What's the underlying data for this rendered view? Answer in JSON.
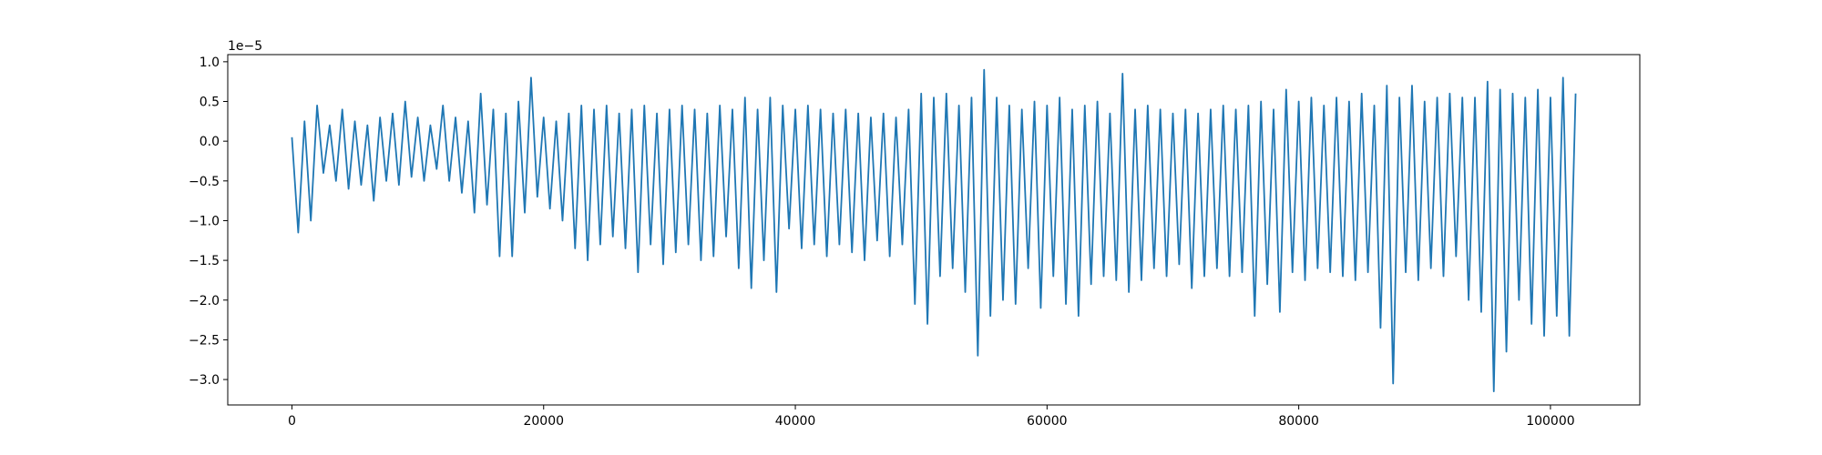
{
  "chart_data": {
    "type": "line",
    "y_offset_label": "1e−5",
    "xlim": [
      -5100,
      107100
    ],
    "ylim": [
      -3.32,
      1.09
    ],
    "xticks": [
      0,
      20000,
      40000,
      60000,
      80000,
      100000
    ],
    "yticks": [
      {
        "value": 1,
        "label": "1.0"
      },
      0.5,
      {
        "value": 0,
        "label": "0.0"
      },
      {
        "value": -0.5,
        "label": "−0.5"
      },
      {
        "value": -1,
        "label": "−1.0"
      },
      {
        "value": -1.5,
        "label": "−1.5"
      },
      {
        "value": -2,
        "label": "−2.0"
      },
      {
        "value": -2.5,
        "label": "−2.5"
      },
      {
        "value": -3,
        "label": "−3.0"
      }
    ],
    "grid": false,
    "x": [
      0,
      500,
      1000,
      1500,
      2000,
      2500,
      3000,
      3500,
      4000,
      4500,
      5000,
      5500,
      6000,
      6500,
      7000,
      7500,
      8000,
      8500,
      9000,
      9500,
      10000,
      10500,
      11000,
      11500,
      12000,
      12500,
      13000,
      13500,
      14000,
      14500,
      15000,
      15500,
      16000,
      16500,
      17000,
      17500,
      18000,
      18500,
      19000,
      19500,
      20000,
      20500,
      21000,
      21500,
      22000,
      22500,
      23000,
      23500,
      24000,
      24500,
      25000,
      25500,
      26000,
      26500,
      27000,
      27500,
      28000,
      28500,
      29000,
      29500,
      30000,
      30500,
      31000,
      31500,
      32000,
      32500,
      33000,
      33500,
      34000,
      34500,
      35000,
      35500,
      36000,
      36500,
      37000,
      37500,
      38000,
      38500,
      39000,
      39500,
      40000,
      40500,
      41000,
      41500,
      42000,
      42500,
      43000,
      43500,
      44000,
      44500,
      45000,
      45500,
      46000,
      46500,
      47000,
      47500,
      48000,
      48500,
      49000,
      49500,
      50000,
      50500,
      51000,
      51500,
      52000,
      52500,
      53000,
      53500,
      54000,
      54500,
      55000,
      55500,
      56000,
      56500,
      57000,
      57500,
      58000,
      58500,
      59000,
      59500,
      60000,
      60500,
      61000,
      61500,
      62000,
      62500,
      63000,
      63500,
      64000,
      64500,
      65000,
      65500,
      66000,
      66500,
      67000,
      67500,
      68000,
      68500,
      69000,
      69500,
      70000,
      70500,
      71000,
      71500,
      72000,
      72500,
      73000,
      73500,
      74000,
      74500,
      75000,
      75500,
      76000,
      76500,
      77000,
      77500,
      78000,
      78500,
      79000,
      79500,
      80000,
      80500,
      81000,
      81500,
      82000,
      82500,
      83000,
      83500,
      84000,
      84500,
      85000,
      85500,
      86000,
      86500,
      87000,
      87500,
      88000,
      88500,
      89000,
      89500,
      90000,
      90500,
      91000,
      91500,
      92000,
      92500,
      93000,
      93500,
      94000,
      94500,
      95000,
      95500,
      96000,
      96500,
      97000,
      97500,
      98000,
      98500,
      99000,
      99500,
      100000,
      100500,
      101000,
      101500,
      102000
    ],
    "series": [
      {
        "color": "#1f77b4",
        "values": [
          0.05,
          -1.15,
          0.25,
          -1.0,
          0.45,
          -0.4,
          0.2,
          -0.5,
          0.4,
          -0.6,
          0.25,
          -0.55,
          0.2,
          -0.75,
          0.3,
          -0.5,
          0.35,
          -0.55,
          0.5,
          -0.45,
          0.3,
          -0.5,
          0.2,
          -0.35,
          0.45,
          -0.5,
          0.3,
          -0.65,
          0.25,
          -0.9,
          0.6,
          -0.8,
          0.4,
          -1.45,
          0.35,
          -1.45,
          0.5,
          -0.9,
          0.8,
          -0.7,
          0.3,
          -0.85,
          0.25,
          -1.0,
          0.35,
          -1.35,
          0.45,
          -1.5,
          0.4,
          -1.3,
          0.45,
          -1.2,
          0.35,
          -1.35,
          0.4,
          -1.65,
          0.45,
          -1.3,
          0.35,
          -1.55,
          0.4,
          -1.4,
          0.45,
          -1.3,
          0.4,
          -1.5,
          0.35,
          -1.45,
          0.45,
          -1.2,
          0.4,
          -1.6,
          0.55,
          -1.85,
          0.4,
          -1.5,
          0.55,
          -1.9,
          0.45,
          -1.1,
          0.4,
          -1.35,
          0.45,
          -1.3,
          0.4,
          -1.45,
          0.35,
          -1.3,
          0.4,
          -1.4,
          0.35,
          -1.5,
          0.3,
          -1.25,
          0.35,
          -1.45,
          0.3,
          -1.3,
          0.4,
          -2.05,
          0.6,
          -2.3,
          0.55,
          -1.7,
          0.6,
          -1.6,
          0.45,
          -1.9,
          0.55,
          -2.7,
          0.9,
          -2.2,
          0.55,
          -2.0,
          0.45,
          -2.05,
          0.4,
          -1.6,
          0.5,
          -2.1,
          0.45,
          -1.7,
          0.55,
          -2.05,
          0.4,
          -2.2,
          0.45,
          -1.8,
          0.5,
          -1.7,
          0.35,
          -1.75,
          0.85,
          -1.9,
          0.4,
          -1.75,
          0.45,
          -1.6,
          0.4,
          -1.7,
          0.35,
          -1.55,
          0.4,
          -1.85,
          0.35,
          -1.7,
          0.4,
          -1.6,
          0.45,
          -1.7,
          0.4,
          -1.65,
          0.45,
          -2.2,
          0.5,
          -1.8,
          0.4,
          -2.15,
          0.65,
          -1.65,
          0.5,
          -1.75,
          0.55,
          -1.6,
          0.45,
          -1.65,
          0.55,
          -1.7,
          0.5,
          -1.75,
          0.6,
          -1.65,
          0.45,
          -2.35,
          0.7,
          -3.05,
          0.55,
          -1.65,
          0.7,
          -1.75,
          0.5,
          -1.6,
          0.55,
          -1.7,
          0.6,
          -1.45,
          0.55,
          -2.0,
          0.55,
          -2.15,
          0.75,
          -3.15,
          0.65,
          -2.65,
          0.6,
          -2.0,
          0.55,
          -2.3,
          0.65,
          -2.45,
          0.55,
          -2.2,
          0.8,
          -2.45,
          0.6
        ]
      }
    ]
  }
}
